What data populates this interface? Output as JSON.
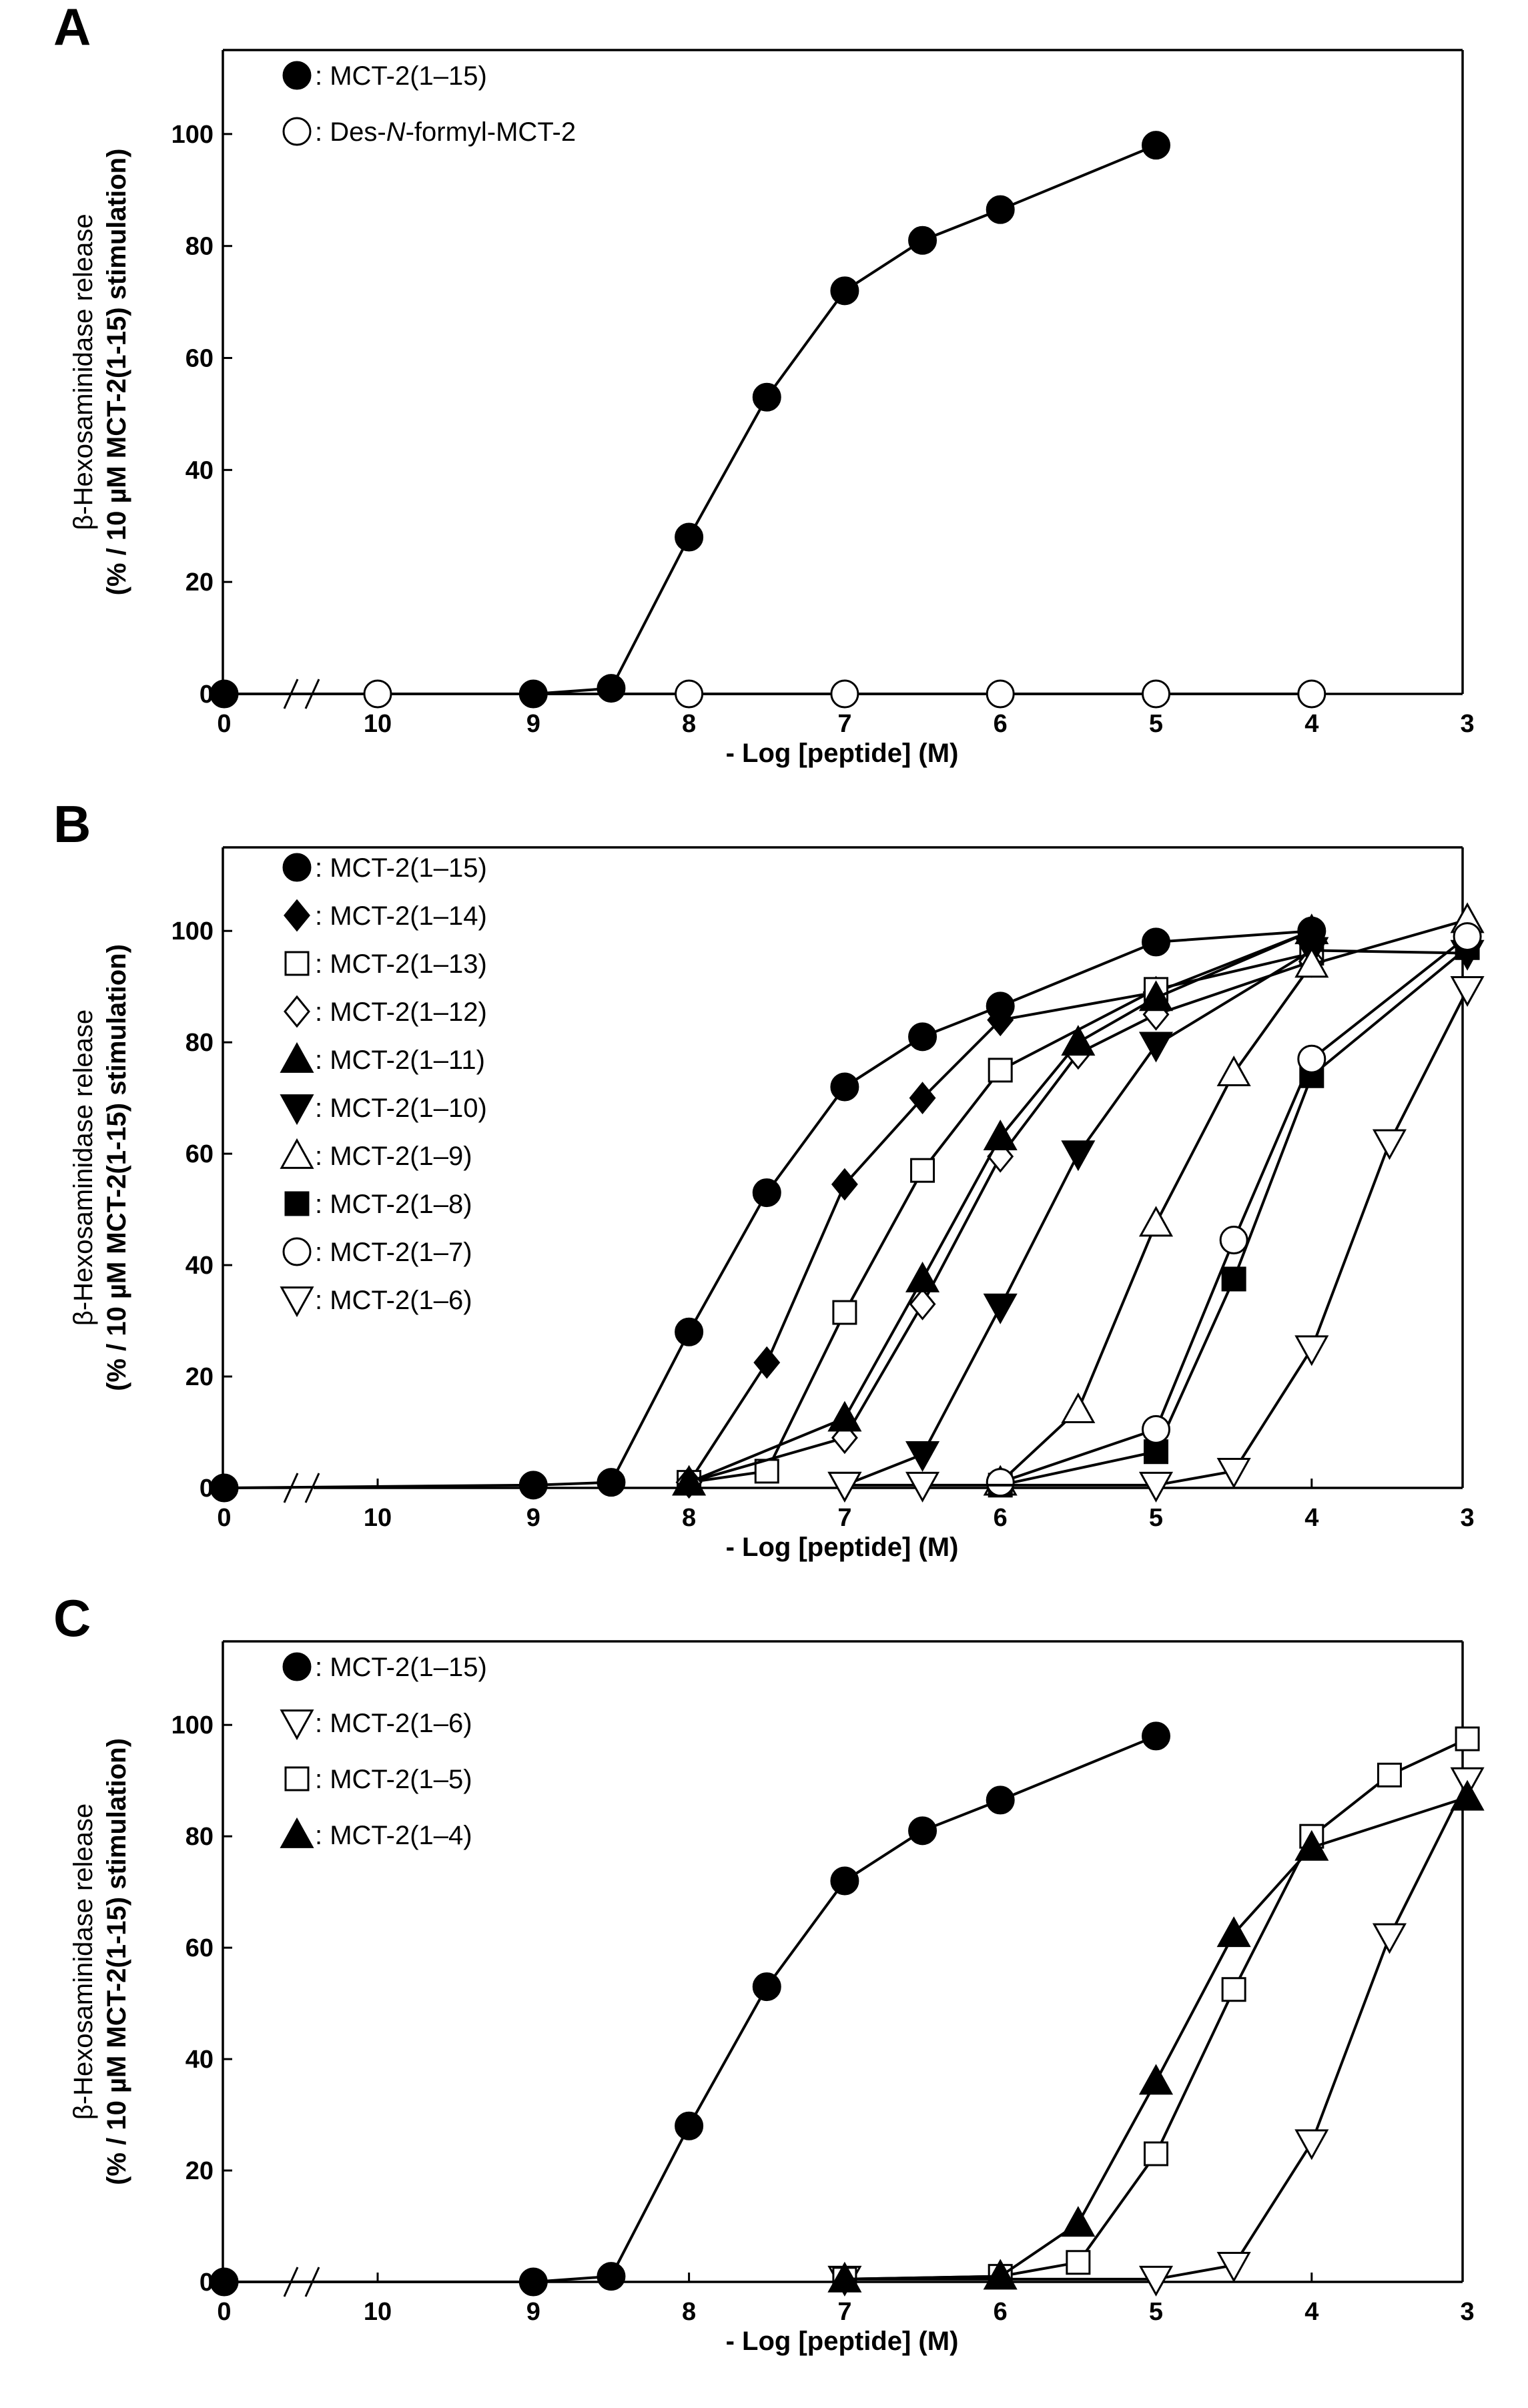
{
  "figure": {
    "x_axis_title": "- Log [peptide] (M)",
    "y_axis_title_line1": "β-Hexosaminidase release",
    "y_axis_title_line2": "(% / 10 µM MCT-2(1-15) stimulation)"
  },
  "chart_data": [
    {
      "type": "line",
      "panel": "A",
      "ylim": [
        0,
        115
      ],
      "yticks": [
        0,
        20,
        40,
        60,
        80,
        100
      ],
      "xticks": [
        "0",
        "10",
        "9",
        "8",
        "7",
        "6",
        "5",
        "4",
        "3"
      ],
      "xlabel": "- Log [peptide] (M)",
      "ylabel": "β-Hexosaminidase release (% / 10 µM MCT-2(1-15) stimulation)",
      "axis_break": "between 0 and 10",
      "series": [
        {
          "name": "MCT-2(1–15)",
          "marker": "filled-circle",
          "points": [
            [
              "0",
              0
            ],
            [
              9,
              0
            ],
            [
              8.5,
              1
            ],
            [
              8,
              28
            ],
            [
              7.5,
              53
            ],
            [
              7,
              72
            ],
            [
              6.5,
              81
            ],
            [
              6,
              86.5
            ],
            [
              5,
              98
            ]
          ]
        },
        {
          "name": "Des-N-formyl-MCT-2",
          "name_prefix": "Des-",
          "name_italic": "N",
          "name_suffix": "-formyl-MCT-2",
          "marker": "open-circle",
          "points": [
            [
              10,
              0
            ],
            [
              8,
              0
            ],
            [
              7,
              0
            ],
            [
              6,
              0
            ],
            [
              5,
              0
            ],
            [
              4,
              0
            ]
          ]
        }
      ]
    },
    {
      "type": "line",
      "panel": "B",
      "ylim": [
        0,
        115
      ],
      "yticks": [
        0,
        20,
        40,
        60,
        80,
        100
      ],
      "xticks": [
        "0",
        "10",
        "9",
        "8",
        "7",
        "6",
        "5",
        "4",
        "3"
      ],
      "xlabel": "- Log [peptide] (M)",
      "ylabel": "β-Hexosaminidase release (% / 10 µM MCT-2(1-15) stimulation)",
      "axis_break": "between 0 and 10",
      "series": [
        {
          "name": "MCT-2(1–15)",
          "marker": "filled-circle",
          "points": [
            [
              "0",
              0
            ],
            [
              9,
              0.5
            ],
            [
              8.5,
              1
            ],
            [
              8,
              28
            ],
            [
              7.5,
              53
            ],
            [
              7,
              72
            ],
            [
              6.5,
              81
            ],
            [
              6,
              86.5
            ],
            [
              5,
              98
            ],
            [
              4,
              100
            ]
          ]
        },
        {
          "name": "MCT-2(1–14)",
          "marker": "filled-diamond",
          "points": [
            [
              8,
              1
            ],
            [
              7.5,
              22.5
            ],
            [
              7,
              54.5
            ],
            [
              6.5,
              70
            ],
            [
              6,
              84
            ],
            [
              5,
              89
            ],
            [
              4,
              100
            ]
          ]
        },
        {
          "name": "MCT-2(1–13)",
          "marker": "open-square",
          "points": [
            [
              8,
              1
            ],
            [
              7.5,
              3
            ],
            [
              7,
              31.5
            ],
            [
              6.5,
              57
            ],
            [
              6,
              75
            ],
            [
              5,
              89.5
            ],
            [
              4,
              96
            ]
          ]
        },
        {
          "name": "MCT-2(1–12)",
          "marker": "open-diamond",
          "points": [
            [
              8,
              1
            ],
            [
              7,
              9
            ],
            [
              6.5,
              33
            ],
            [
              6,
              59.5
            ],
            [
              5.5,
              78
            ],
            [
              5,
              85
            ],
            [
              4,
              94.5
            ]
          ]
        },
        {
          "name": "MCT-2(1–11)",
          "marker": "filled-triangle-up",
          "points": [
            [
              8,
              1
            ],
            [
              7,
              12.5
            ],
            [
              6.5,
              37.5
            ],
            [
              6,
              63
            ],
            [
              5.5,
              80
            ],
            [
              5,
              88
            ],
            [
              4,
              100
            ]
          ]
        },
        {
          "name": "MCT-2(1–10)",
          "marker": "filled-triangle-down",
          "points": [
            [
              7,
              0.5
            ],
            [
              6.5,
              6
            ],
            [
              6,
              32.5
            ],
            [
              5.5,
              60
            ],
            [
              5,
              79.5
            ],
            [
              4,
              96.5
            ],
            [
              3,
              96
            ]
          ]
        },
        {
          "name": "MCT-2(1–9)",
          "marker": "open-triangle-up",
          "points": [
            [
              6,
              1
            ],
            [
              5.5,
              14
            ],
            [
              5,
              47.5
            ],
            [
              4.5,
              74.5
            ],
            [
              4,
              94
            ],
            [
              3,
              102
            ]
          ]
        },
        {
          "name": "MCT-2(1–8)",
          "marker": "filled-square",
          "points": [
            [
              6,
              0.5
            ],
            [
              5,
              6.5
            ],
            [
              4.5,
              37.5
            ],
            [
              4,
              74
            ],
            [
              3,
              97
            ]
          ]
        },
        {
          "name": "MCT-2(1–7)",
          "marker": "open-circle",
          "points": [
            [
              6,
              1
            ],
            [
              5,
              10.5
            ],
            [
              4.5,
              44.5
            ],
            [
              4,
              77
            ],
            [
              3,
              99
            ]
          ]
        },
        {
          "name": "MCT-2(1–6)",
          "marker": "open-triangle-down",
          "points": [
            [
              7,
              0.5
            ],
            [
              6.5,
              0.5
            ],
            [
              5,
              0.5
            ],
            [
              4.5,
              3
            ],
            [
              4,
              25
            ],
            [
              3.5,
              62
            ],
            [
              3,
              89.5
            ]
          ]
        }
      ]
    },
    {
      "type": "line",
      "panel": "C",
      "ylim": [
        0,
        115
      ],
      "yticks": [
        0,
        20,
        40,
        60,
        80,
        100
      ],
      "xticks": [
        "0",
        "10",
        "9",
        "8",
        "7",
        "6",
        "5",
        "4",
        "3"
      ],
      "xlabel": "- Log [peptide] (M)",
      "ylabel": "β-Hexosaminidase release (% / 10 µM MCT-2(1-15) stimulation)",
      "axis_break": "between 0 and 10",
      "series": [
        {
          "name": "MCT-2(1–15)",
          "marker": "filled-circle",
          "points": [
            [
              "0",
              0
            ],
            [
              9,
              0
            ],
            [
              8.5,
              1
            ],
            [
              8,
              28
            ],
            [
              7.5,
              53
            ],
            [
              7,
              72
            ],
            [
              6.5,
              81
            ],
            [
              6,
              86.5
            ],
            [
              5,
              98
            ]
          ]
        },
        {
          "name": "MCT-2(1–6)",
          "marker": "open-triangle-down",
          "points": [
            [
              7,
              0.5
            ],
            [
              5,
              0.5
            ],
            [
              4.5,
              3
            ],
            [
              4,
              25
            ],
            [
              3.5,
              62
            ],
            [
              3,
              90
            ]
          ]
        },
        {
          "name": "MCT-2(1–5)",
          "marker": "open-square",
          "points": [
            [
              7,
              0.5
            ],
            [
              6,
              1
            ],
            [
              5.5,
              3.5
            ],
            [
              5,
              23
            ],
            [
              4.5,
              52.5
            ],
            [
              4,
              80
            ],
            [
              3.5,
              91
            ],
            [
              3,
              97.5
            ]
          ]
        },
        {
          "name": "MCT-2(1–4)",
          "marker": "filled-triangle-up",
          "points": [
            [
              7,
              0.5
            ],
            [
              6,
              1
            ],
            [
              5.5,
              10.5
            ],
            [
              5,
              36
            ],
            [
              4.5,
              62.5
            ],
            [
              4,
              78
            ],
            [
              3,
              87
            ]
          ]
        }
      ]
    }
  ]
}
